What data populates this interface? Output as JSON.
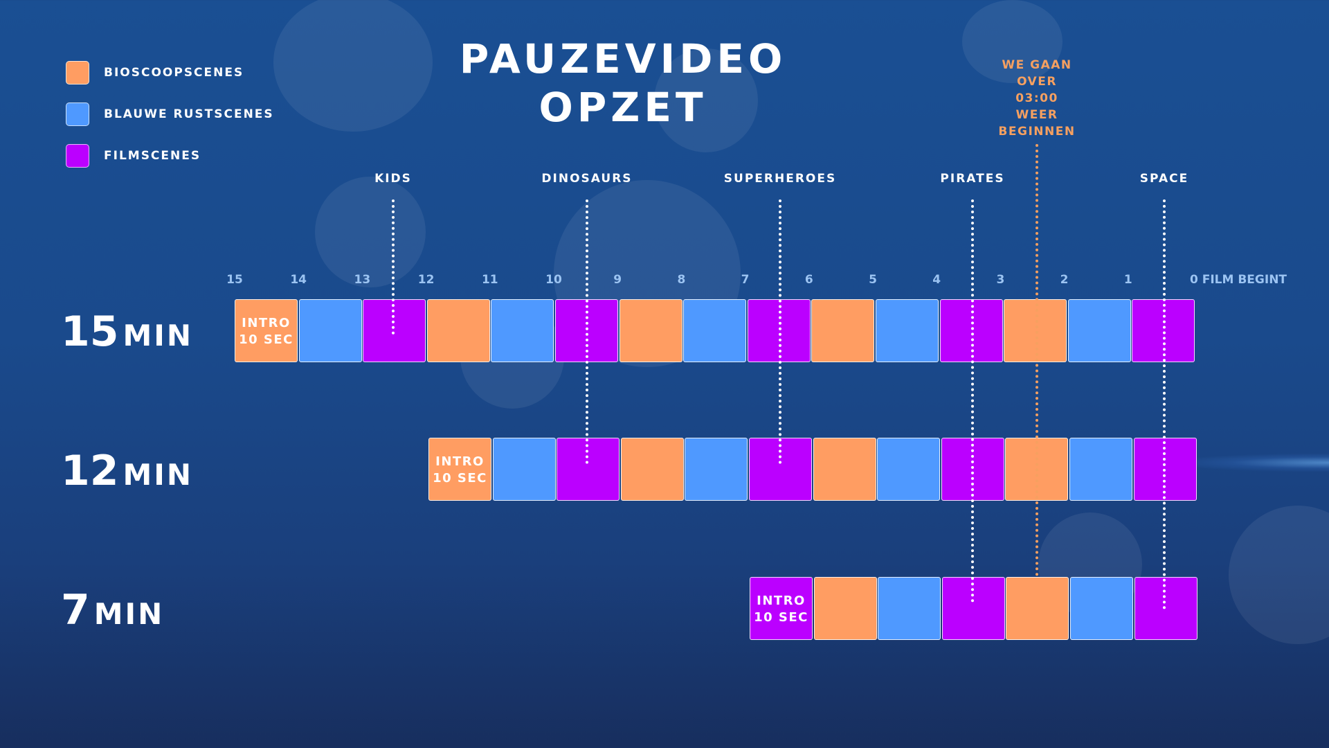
{
  "title": "PAUZEVIDEO OPZET",
  "colors": {
    "bioscoop": "#ff9d62",
    "rust": "#4f99ff",
    "film": "#bb00ff",
    "notice": "#f6a060"
  },
  "legend": [
    {
      "label": "BIOSCOOPSCENES",
      "type": "bioscoop"
    },
    {
      "label": "BLAUWE RUSTSCENES",
      "type": "rust"
    },
    {
      "label": "FILMSCENES",
      "type": "film"
    }
  ],
  "notice_lines": [
    "WE GAAN",
    "OVER",
    "03:00",
    "WEER",
    "BEGINNEN"
  ],
  "markers": [
    "KIDS",
    "DINOSAURS",
    "SUPERHEROES",
    "PIRATES",
    "SPACE"
  ],
  "ticks": [
    "15",
    "14",
    "13",
    "12",
    "11",
    "10",
    "9",
    "8",
    "7",
    "6",
    "5",
    "4",
    "3",
    "2",
    "1"
  ],
  "tick_end": "0 FILM BEGINT",
  "intro_lines": [
    "INTRO",
    "10 SEC"
  ],
  "rows": [
    {
      "number": "15",
      "unit": "MIN",
      "minutes": 15,
      "cells": [
        "intro-bioscoop",
        "rust",
        "film",
        "bioscoop",
        "rust",
        "film",
        "bioscoop",
        "rust",
        "film",
        "bioscoop",
        "rust",
        "film",
        "bioscoop",
        "rust",
        "film"
      ]
    },
    {
      "number": "12",
      "unit": "MIN",
      "minutes": 12,
      "cells": [
        "intro-bioscoop",
        "rust",
        "film",
        "bioscoop",
        "rust",
        "film",
        "bioscoop",
        "rust",
        "film",
        "bioscoop",
        "rust",
        "film"
      ]
    },
    {
      "number": "7",
      "unit": "MIN",
      "minutes": 7,
      "cells": [
        "intro-film",
        "bioscoop",
        "rust",
        "film",
        "bioscoop",
        "rust",
        "film"
      ]
    }
  ]
}
